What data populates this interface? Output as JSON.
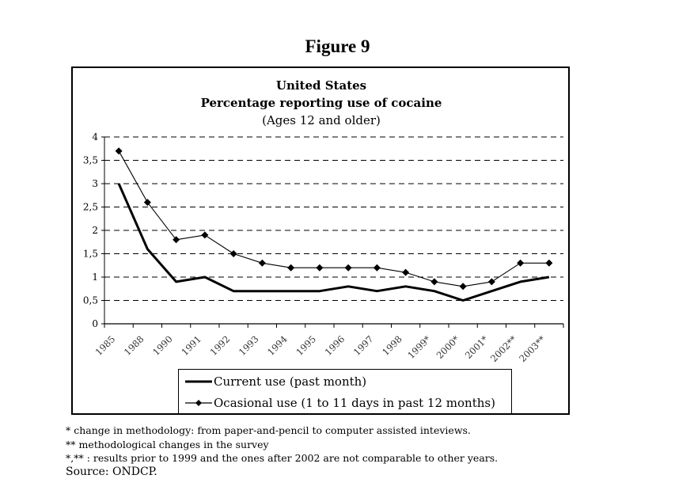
{
  "figure_title": "Figure 9",
  "chart_data": {
    "type": "line",
    "title": "United States",
    "subtitle": "Percentage reporting use of cocaine",
    "subtitle2": "(Ages 12 and older)",
    "xlabel": "",
    "ylabel": "",
    "ylim": [
      0,
      4
    ],
    "yticks": [
      0,
      0.5,
      1,
      1.5,
      2,
      2.5,
      3,
      3.5,
      4
    ],
    "ytick_labels": [
      "0",
      "0,5",
      "1",
      "1,5",
      "2",
      "2,5",
      "3",
      "3,5",
      "4"
    ],
    "grid": "horizontal dashed",
    "legend_position": "bottom",
    "categories": [
      "1985",
      "1988",
      "1990",
      "1991",
      "1992",
      "1993",
      "1994",
      "1995",
      "1996",
      "1997",
      "1998",
      "1999*",
      "2000*",
      "2001*",
      "2002**",
      "2003**"
    ],
    "series": [
      {
        "name": "Current use (past month)",
        "marker": "none",
        "color": "#000000",
        "values": [
          3.0,
          1.6,
          0.9,
          1.0,
          0.7,
          0.7,
          0.7,
          0.7,
          0.8,
          0.7,
          0.8,
          0.7,
          0.5,
          0.7,
          0.9,
          1.0
        ]
      },
      {
        "name": "Ocasional use (1 to 11 days in past 12 months)",
        "marker": "diamond",
        "color": "#000000",
        "values": [
          3.7,
          2.6,
          1.8,
          1.9,
          1.5,
          1.3,
          1.2,
          1.2,
          1.2,
          1.2,
          1.1,
          0.9,
          0.8,
          0.9,
          1.3,
          1.3
        ]
      }
    ]
  },
  "notes": [
    "* change in methodology: from paper-and-pencil to computer assisted inteviews.",
    "** methodological changes in the survey",
    "*,** : results prior to 1999 and the ones after 2002 are not comparable to other years."
  ],
  "source": "Source: ONDCP."
}
